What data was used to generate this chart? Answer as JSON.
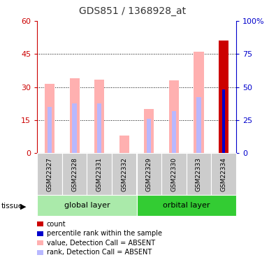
{
  "title": "GDS851 / 1368928_at",
  "samples": [
    "GSM22327",
    "GSM22328",
    "GSM22331",
    "GSM22332",
    "GSM22329",
    "GSM22330",
    "GSM22333",
    "GSM22334"
  ],
  "value_absent": [
    31.5,
    34.0,
    33.5,
    8.0,
    20.0,
    33.0,
    46.0,
    null
  ],
  "rank_absent": [
    21.0,
    22.5,
    22.5,
    null,
    15.5,
    19.0,
    25.5,
    null
  ],
  "count": [
    null,
    null,
    null,
    null,
    null,
    null,
    null,
    51.0
  ],
  "percentile_rank": [
    null,
    null,
    null,
    null,
    null,
    null,
    null,
    29.0
  ],
  "ylim_left": [
    0,
    60
  ],
  "ylim_right": [
    0,
    100
  ],
  "yticks_left": [
    0,
    15,
    30,
    45,
    60
  ],
  "yticks_right": [
    0,
    25,
    50,
    75,
    100
  ],
  "color_count": "#cc0000",
  "color_percentile": "#0000cc",
  "color_value_absent": "#ffb0b0",
  "color_rank_absent": "#b8b8ff",
  "title_color": "#333333",
  "left_axis_color": "#cc0000",
  "right_axis_color": "#0000cc",
  "color_global": "#aaeaaa",
  "color_orbital": "#33cc33",
  "color_sample_box": "#cccccc",
  "legend_items": [
    [
      "#cc0000",
      "count"
    ],
    [
      "#0000cc",
      "percentile rank within the sample"
    ],
    [
      "#ffb0b0",
      "value, Detection Call = ABSENT"
    ],
    [
      "#b8b8ff",
      "rank, Detection Call = ABSENT"
    ]
  ]
}
